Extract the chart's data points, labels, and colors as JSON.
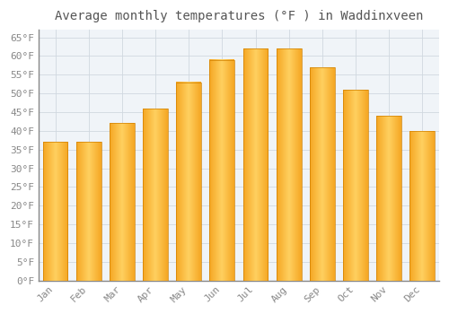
{
  "title": "Average monthly temperatures (°F ) in Waddinxveen",
  "months": [
    "Jan",
    "Feb",
    "Mar",
    "Apr",
    "May",
    "Jun",
    "Jul",
    "Aug",
    "Sep",
    "Oct",
    "Nov",
    "Dec"
  ],
  "values": [
    37,
    37,
    42,
    46,
    53,
    59,
    62,
    62,
    57,
    51,
    44,
    40
  ],
  "bar_color_center": "#FFD966",
  "bar_color_edge": "#F5A623",
  "bar_gradient_left": "#F5A623",
  "bar_gradient_mid": "#FFD966",
  "background_color": "#FFFFFF",
  "plot_bg_color": "#F0F4F8",
  "grid_color": "#D0D8E0",
  "ylim": [
    0,
    67
  ],
  "yticks": [
    0,
    5,
    10,
    15,
    20,
    25,
    30,
    35,
    40,
    45,
    50,
    55,
    60,
    65
  ],
  "title_fontsize": 10,
  "tick_fontsize": 8,
  "tick_color": "#888888",
  "title_color": "#555555",
  "font_family": "monospace",
  "bar_width": 0.75
}
